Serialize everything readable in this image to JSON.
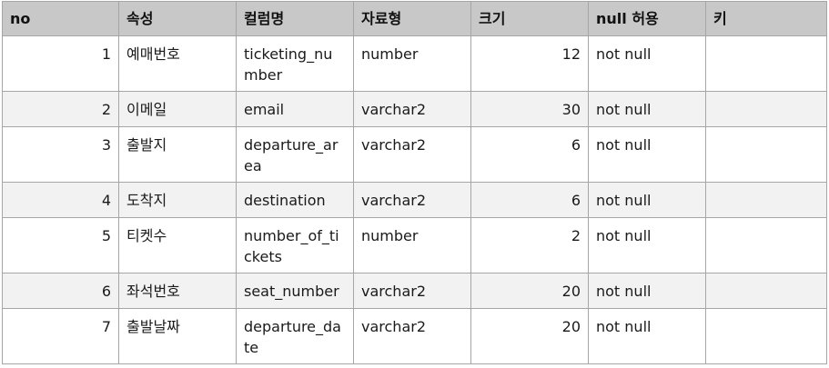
{
  "table": {
    "headers": [
      "no",
      "속성",
      "컬럼명",
      "자료형",
      "크기",
      "null 허용",
      "키"
    ],
    "rows": [
      {
        "no": "1",
        "attr": "예매번호",
        "column": "ticketing_number",
        "type": "number",
        "size": "12",
        "nullable": "not null",
        "key": ""
      },
      {
        "no": "2",
        "attr": "이메일",
        "column": "email",
        "type": "varchar2",
        "size": "30",
        "nullable": "not null",
        "key": ""
      },
      {
        "no": "3",
        "attr": "출발지",
        "column": "departure_area",
        "type": "varchar2",
        "size": "6",
        "nullable": "not null",
        "key": ""
      },
      {
        "no": "4",
        "attr": "도착지",
        "column": "destination",
        "type": "varchar2",
        "size": "6",
        "nullable": "not null",
        "key": ""
      },
      {
        "no": "5",
        "attr": "티켓수",
        "column": "number_of_tickets",
        "type": "number",
        "size": "2",
        "nullable": "not null",
        "key": ""
      },
      {
        "no": "6",
        "attr": "좌석번호",
        "column": "seat_number",
        "type": "varchar2",
        "size": "20",
        "nullable": "not null",
        "key": ""
      },
      {
        "no": "7",
        "attr": "출발날짜",
        "column": "departure_date",
        "type": "varchar2",
        "size": "20",
        "nullable": "not null",
        "key": ""
      }
    ]
  }
}
